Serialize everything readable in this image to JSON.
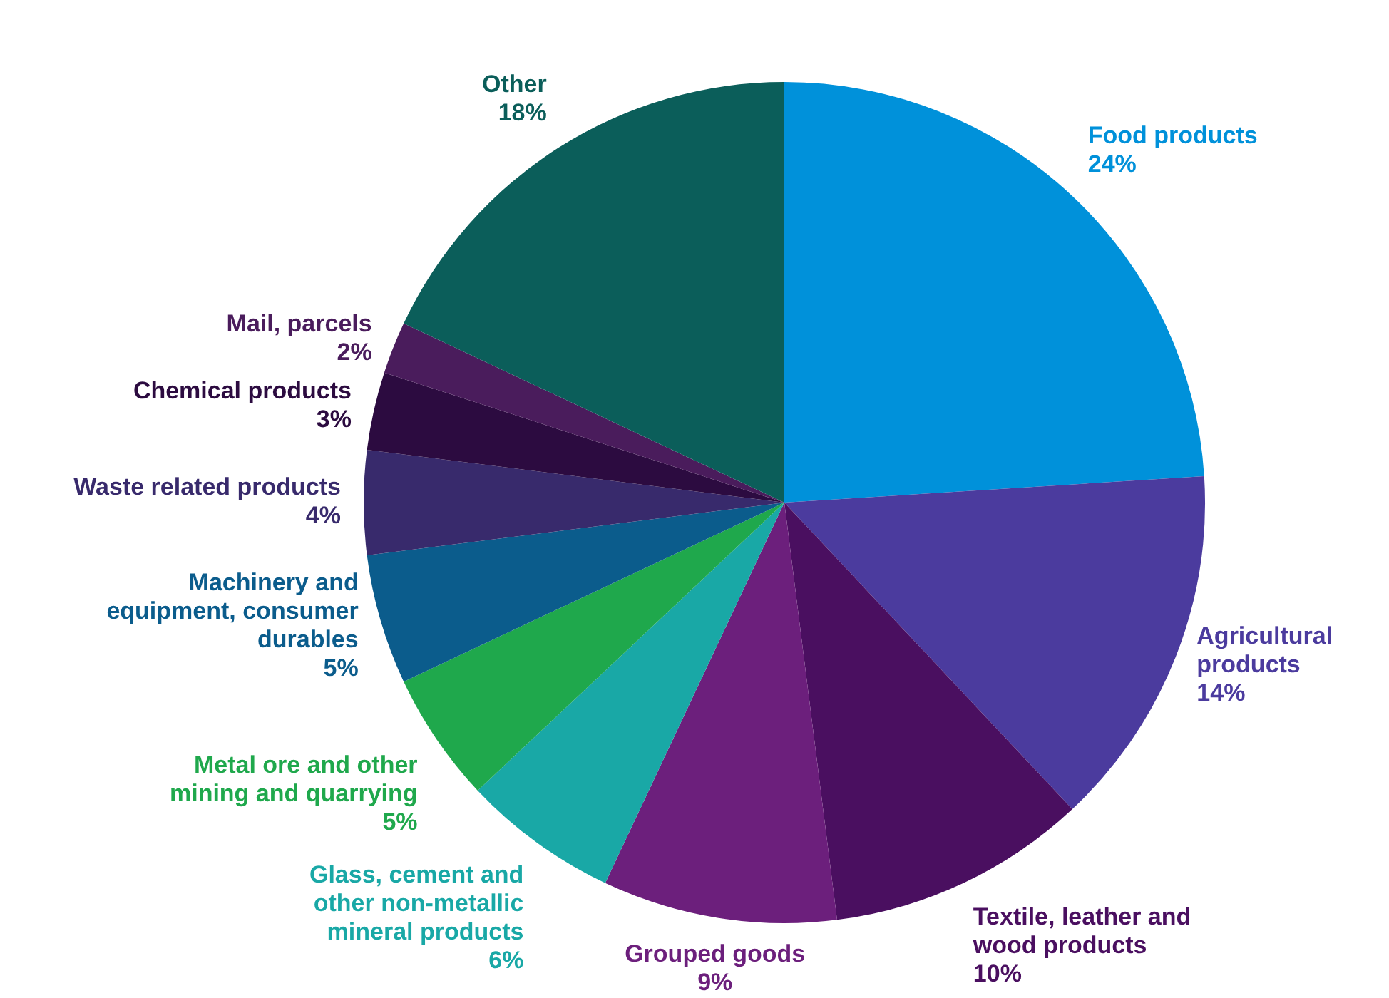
{
  "chart_data": {
    "type": "pie",
    "categories": [
      "Food products",
      "Agricultural products",
      "Textile, leather and wood products",
      "Grouped goods",
      "Glass, cement and other non-metallic mineral products",
      "Metal ore and other mining and quarrying",
      "Machinery and equipment, consumer durables",
      "Waste related products",
      "Chemical products",
      "Mail, parcels",
      "Other"
    ],
    "values": [
      24,
      14,
      10,
      9,
      6,
      5,
      5,
      4,
      3,
      2,
      18
    ],
    "value_labels": [
      "24%",
      "14%",
      "10%",
      "9%",
      "6%",
      "5%",
      "5%",
      "4%",
      "3%",
      "2%",
      "18%"
    ],
    "colors": [
      "#0091da",
      "#4b3b9e",
      "#4a0f60",
      "#6c1f7c",
      "#19a8a6",
      "#1fa84c",
      "#0b5c8c",
      "#382a6c",
      "#2c0b40",
      "#4a1c5c",
      "#0b5e5a"
    ],
    "legend": false
  }
}
